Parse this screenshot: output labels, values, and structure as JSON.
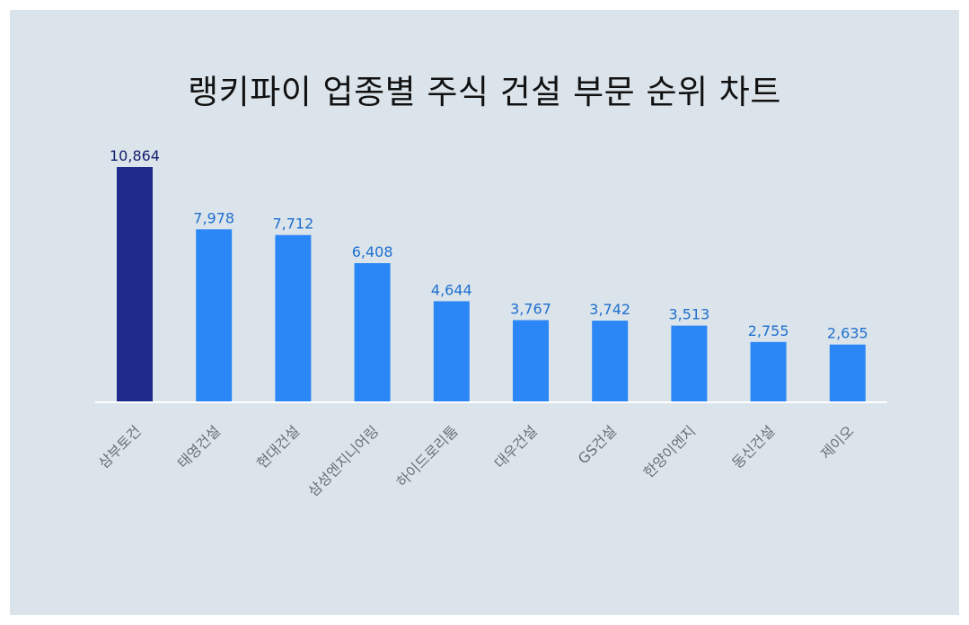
{
  "chart_data": {
    "type": "bar",
    "title": "랭키파이 업종별 주식 건설 부문 순위 차트",
    "categories": [
      "삼부토건",
      "태영건설",
      "현대건설",
      "삼성엔지니어링",
      "하이드로리툼",
      "대우건설",
      "GS건설",
      "한양이엔지",
      "동신건설",
      "제이오"
    ],
    "values": [
      10864,
      7978,
      7712,
      6408,
      4644,
      3767,
      3742,
      3513,
      2755,
      2635
    ],
    "value_labels": [
      "10,864",
      "7,978",
      "7,712",
      "6,408",
      "4,644",
      "3,767",
      "3,742",
      "3,513",
      "2,755",
      "2,635"
    ],
    "highlight_index": 0,
    "colors": {
      "highlight": "#1f2a8c",
      "bar": "#2b87f5",
      "highlight_label": "#14206e",
      "label": "#1e6fd0",
      "axis": "#ffffff"
    },
    "ylim": [
      0,
      10864
    ],
    "xlabel": "",
    "ylabel": "",
    "grid": false,
    "legend": "none"
  }
}
